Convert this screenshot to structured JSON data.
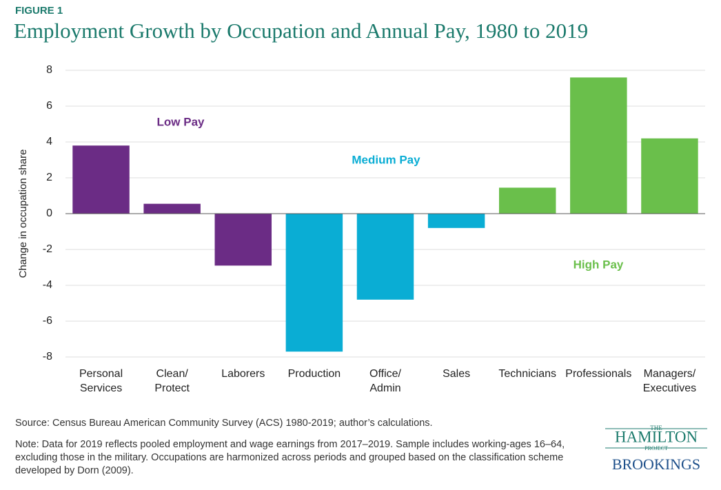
{
  "header": {
    "figure": "FIGURE 1",
    "title": "Employment Growth by Occupation and Annual Pay, 1980 to 2019"
  },
  "chart_data": {
    "type": "bar",
    "ylabel": "Change in occupation share",
    "categories": [
      "Personal\nServices",
      "Clean/\nProtect",
      "Laborers",
      "Production",
      "Office/\nAdmin",
      "Sales",
      "Technicians",
      "Professionals",
      "Managers/\nExecutives"
    ],
    "series": [
      {
        "name": "Low Pay",
        "color": "#6b2c85",
        "values": [
          3.8,
          0.55,
          -2.9,
          null,
          null,
          null,
          null,
          null,
          null
        ]
      },
      {
        "name": "Medium Pay",
        "color": "#0aadd4",
        "values": [
          null,
          null,
          null,
          -7.7,
          -4.8,
          -0.8,
          null,
          null,
          null
        ]
      },
      {
        "name": "High Pay",
        "color": "#6abf4b",
        "values": [
          null,
          null,
          null,
          null,
          null,
          null,
          1.45,
          7.6,
          4.2
        ]
      }
    ],
    "ylim": [
      -8,
      8
    ],
    "yticks": [
      -8,
      -6,
      -4,
      -2,
      0,
      2,
      4,
      6,
      8
    ],
    "grid": true
  },
  "source": "Source: Census Bureau American Community Survey (ACS) 1980-2019; author’s calculations.",
  "note": "Note: Data for 2019 reflects pooled employment and wage earnings from 2017–2019. Sample includes working-ages 16–64, excluding those in the military. Occupations are harmonized across periods and grouped based on the classification scheme developed by Dorn (2009).",
  "logo": {
    "the": "THE",
    "name": "HAMILTON",
    "project": "PROJECT",
    "org": "BROOKINGS"
  }
}
